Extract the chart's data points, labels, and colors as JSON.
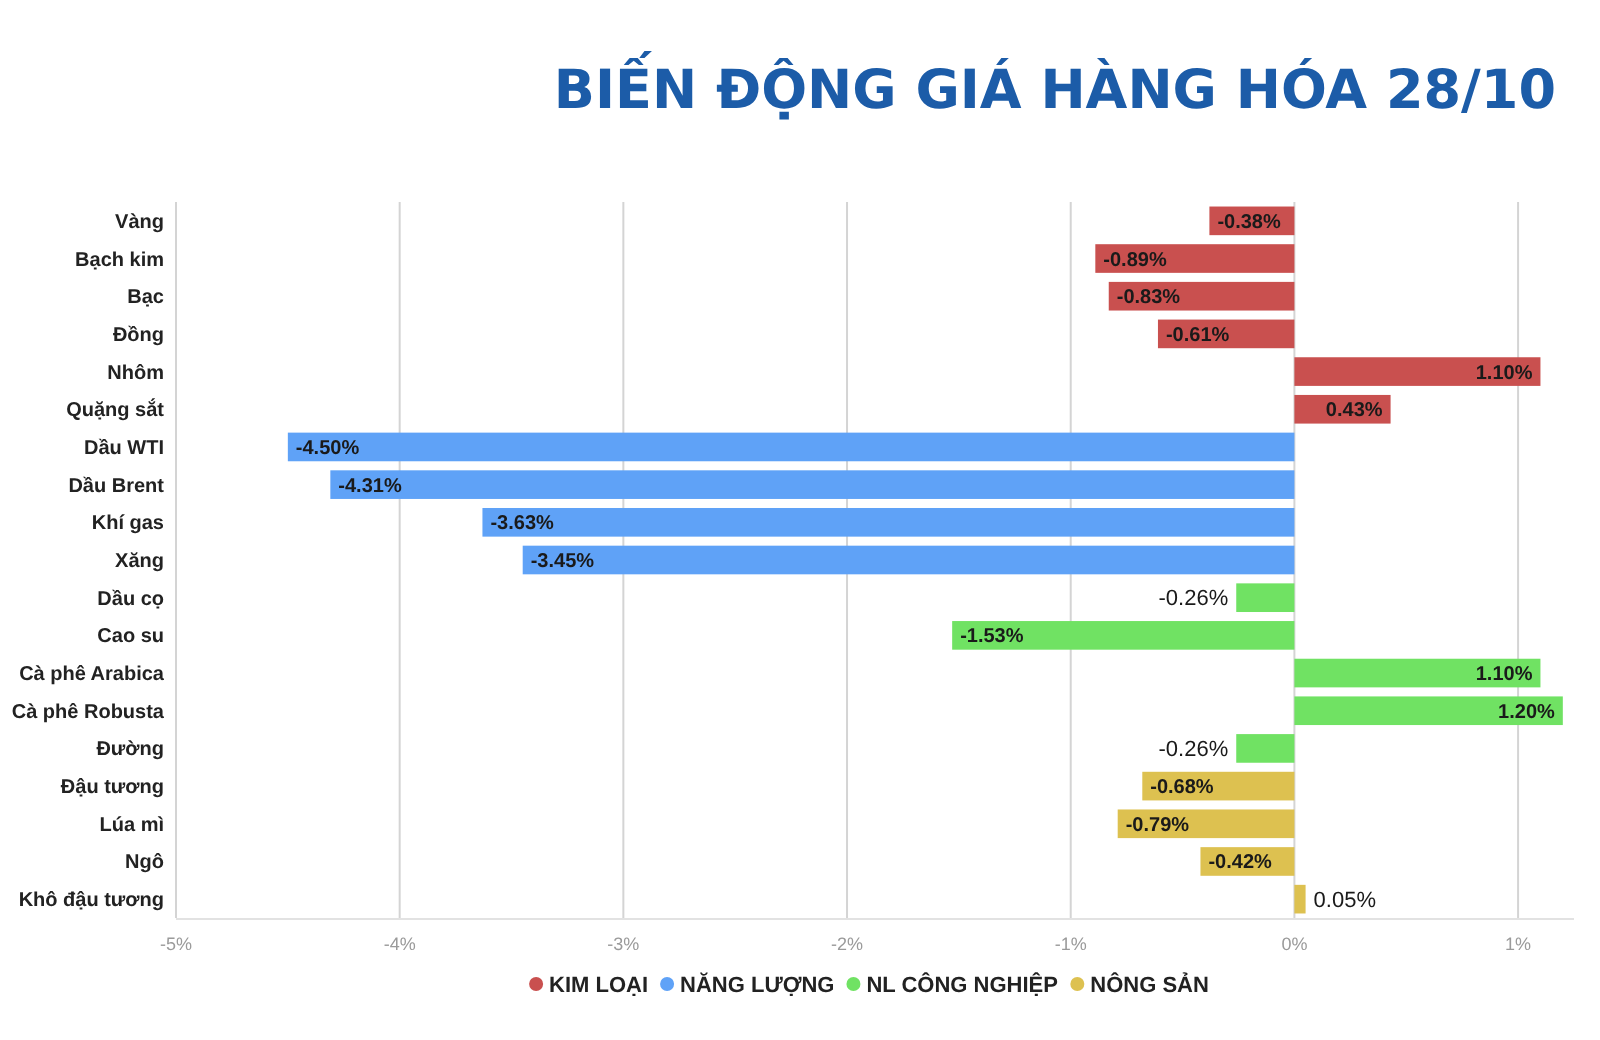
{
  "chart_data": {
    "type": "bar",
    "orientation": "horizontal",
    "stacked": true,
    "title": "BIẾN ĐỘNG GIÁ HÀNG HÓA 28/10",
    "categories": [
      "Vàng",
      "Bạch kim",
      "Bạc",
      "Đồng",
      "Nhôm",
      "Quặng sắt",
      "Dầu WTI",
      "Dầu Brent",
      "Khí gas",
      "Xăng",
      "Dầu cọ",
      "Cao su",
      "Cà phê Arabica",
      "Cà phê Robusta",
      "Đường",
      "Đậu tương",
      "Lúa mì",
      "Ngô",
      "Khô đậu tương"
    ],
    "series": [
      {
        "name": "KIM LOẠI",
        "color": "#c9504f",
        "values": [
          -0.38,
          -0.89,
          -0.83,
          -0.61,
          1.1,
          0.43,
          null,
          null,
          null,
          null,
          null,
          null,
          null,
          null,
          null,
          null,
          null,
          null,
          null
        ],
        "value_labels": [
          "-0.38%",
          "-0.89%",
          "-0.83%",
          "-0.61%",
          "1.10%",
          "0.43%",
          null,
          null,
          null,
          null,
          null,
          null,
          null,
          null,
          null,
          null,
          null,
          null,
          null
        ]
      },
      {
        "name": "NĂNG LƯỢNG",
        "color": "#5fa2f7",
        "values": [
          null,
          null,
          null,
          null,
          null,
          null,
          -4.5,
          -4.31,
          -3.63,
          -3.45,
          null,
          null,
          null,
          null,
          null,
          null,
          null,
          null,
          null
        ],
        "value_labels": [
          null,
          null,
          null,
          null,
          null,
          null,
          "-4.50%",
          "-4.31%",
          "-3.63%",
          "-3.45%",
          null,
          null,
          null,
          null,
          null,
          null,
          null,
          null,
          null
        ]
      },
      {
        "name": "NL CÔNG NGHIỆP",
        "color": "#70e263",
        "values": [
          null,
          null,
          null,
          null,
          null,
          null,
          null,
          null,
          null,
          null,
          -0.26,
          -1.53,
          1.1,
          1.2,
          -0.26,
          null,
          null,
          null,
          null
        ],
        "value_labels": [
          null,
          null,
          null,
          null,
          null,
          null,
          null,
          null,
          null,
          null,
          "-0.26%",
          "-1.53%",
          "1.10%",
          "1.20%",
          "-0.26%",
          null,
          null,
          null,
          null
        ]
      },
      {
        "name": "NÔNG SẢN",
        "color": "#ddc150",
        "values": [
          null,
          null,
          null,
          null,
          null,
          null,
          null,
          null,
          null,
          null,
          null,
          null,
          null,
          null,
          null,
          -0.68,
          -0.79,
          -0.42,
          0.05
        ],
        "value_labels": [
          null,
          null,
          null,
          null,
          null,
          null,
          null,
          null,
          null,
          null,
          null,
          null,
          null,
          null,
          null,
          "-0.68%",
          "-0.79%",
          "-0.42%",
          "0.05%"
        ]
      }
    ],
    "xlim": [
      -5,
      1.25
    ],
    "xticks": [
      {
        "value": -5,
        "label": "-5%"
      },
      {
        "value": -4,
        "label": "-4%"
      },
      {
        "value": -3,
        "label": "-3%"
      },
      {
        "value": -2,
        "label": "-2%"
      },
      {
        "value": -1,
        "label": "-1%"
      },
      {
        "value": 0,
        "label": "0%"
      },
      {
        "value": 1,
        "label": "1%"
      }
    ],
    "grid": "x",
    "legend": "bottom"
  }
}
